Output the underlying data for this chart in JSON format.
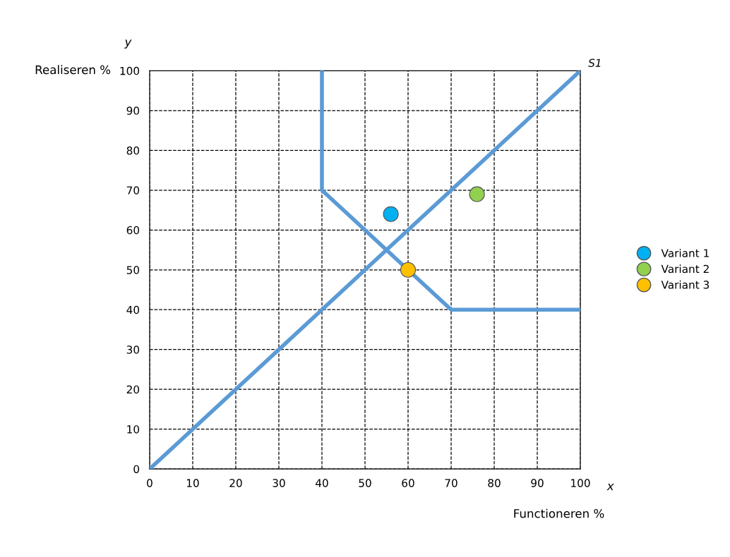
{
  "chart_data": {
    "type": "line",
    "xlabel": "Functioneren %",
    "ylabel": "Realiseren %",
    "annotations": [
      "y",
      "x"
    ],
    "xlim": [
      0,
      100
    ],
    "ylim": [
      0,
      100
    ],
    "xticks": [
      0,
      10,
      20,
      30,
      40,
      50,
      60,
      70,
      80,
      90,
      100
    ],
    "yticks": [
      0,
      10,
      20,
      30,
      40,
      50,
      60,
      70,
      80,
      90,
      100
    ],
    "grid": true,
    "legend": "right",
    "series": [
      {
        "name": "S1",
        "color": "#5b9bd5",
        "x": [
          0,
          100
        ],
        "values": [
          0,
          100
        ]
      },
      {
        "color": "#5b9bd5",
        "x": [
          40,
          40,
          70,
          100
        ],
        "values": [
          100,
          70,
          40,
          40
        ]
      },
      {
        "name": "Variant 1",
        "type": "scatter",
        "color": "#00b0f0",
        "x": [
          56
        ],
        "values": [
          64
        ]
      },
      {
        "name": "Variant 2",
        "type": "scatter",
        "color": "#92d050",
        "x": [
          76
        ],
        "values": [
          69
        ]
      },
      {
        "name": "Variant 3",
        "type": "scatter",
        "color": "#ffc000",
        "x": [
          60
        ],
        "values": [
          50
        ]
      }
    ]
  }
}
